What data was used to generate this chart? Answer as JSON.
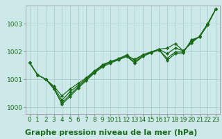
{
  "background_color": "#cce8e8",
  "plot_bg_color": "#cce8e8",
  "grid_color": "#aacccc",
  "line_color": "#1a6b1a",
  "marker_color": "#1a6b1a",
  "title": "Graphe pression niveau de la mer (hPa)",
  "ylim": [
    999.75,
    1003.65
  ],
  "xlim": [
    -0.5,
    23.5
  ],
  "yticks": [
    1000,
    1001,
    1002,
    1003
  ],
  "xticks": [
    0,
    1,
    2,
    3,
    4,
    5,
    6,
    7,
    8,
    9,
    10,
    11,
    12,
    13,
    14,
    15,
    16,
    17,
    18,
    19,
    20,
    21,
    22,
    23
  ],
  "series": [
    [
      1001.6,
      1001.15,
      1001.0,
      1000.75,
      1000.4,
      1000.65,
      1000.85,
      1001.05,
      1001.3,
      1001.5,
      1001.62,
      1001.72,
      1001.82,
      1001.72,
      1001.88,
      1001.98,
      1002.08,
      1002.12,
      1002.28,
      1002.02,
      1002.3,
      1002.55,
      1003.0,
      1003.52
    ],
    [
      1001.6,
      1001.15,
      1001.0,
      1000.65,
      1000.15,
      1000.45,
      1000.72,
      1000.98,
      1001.25,
      1001.48,
      1001.62,
      1001.72,
      1001.84,
      1001.62,
      1001.84,
      1001.96,
      1002.06,
      1001.75,
      1001.98,
      1001.98,
      1002.38,
      1002.52,
      1002.98,
      1003.52
    ],
    [
      1001.6,
      1001.15,
      1001.0,
      1000.7,
      1000.25,
      1000.55,
      1000.78,
      1001.02,
      1001.28,
      1001.52,
      1001.64,
      1001.74,
      1001.88,
      1001.68,
      1001.88,
      1001.98,
      1002.08,
      1001.92,
      1002.12,
      1002.02,
      1002.34,
      1002.54,
      1002.98,
      1003.52
    ],
    [
      1001.6,
      1001.15,
      1001.0,
      1000.68,
      1000.1,
      1000.38,
      1000.68,
      1000.95,
      1001.22,
      1001.44,
      1001.58,
      1001.7,
      1001.82,
      1001.58,
      1001.82,
      1001.95,
      1002.06,
      1001.68,
      1001.92,
      1001.95,
      1002.42,
      1002.52,
      1002.95,
      1003.52
    ]
  ],
  "title_fontsize": 8,
  "tick_fontsize": 6.5,
  "linewidth": 0.9,
  "markersize": 2.2
}
